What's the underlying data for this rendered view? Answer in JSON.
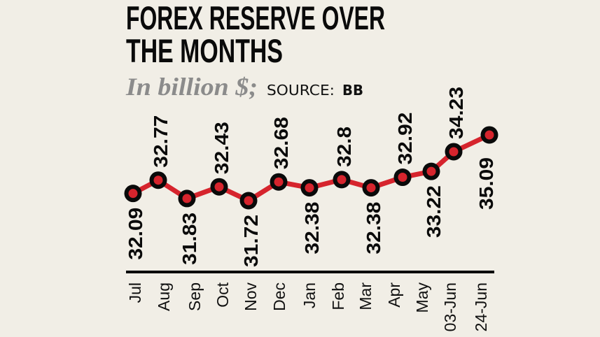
{
  "header": {
    "title_line1": "FOREX RESERVE OVER",
    "title_line2": "THE MONTHS",
    "unit": "In billion $;",
    "source_prefix": "SOURCE:",
    "source_name": "BB"
  },
  "colors": {
    "background": "#f1eee6",
    "line": "#d6242d",
    "marker_ring": "#0a0a0a",
    "marker_fill": "#d6242d",
    "axis": "#0a0a0a",
    "unit_text": "#8b8b8b"
  },
  "chart_data": {
    "type": "line",
    "title": "FOREX RESERVE OVER THE MONTHS",
    "subtitle": "In billion $; SOURCE: BB",
    "xlabel": "",
    "ylabel": "In billion $",
    "categories": [
      "Jul",
      "Aug",
      "Sep",
      "Oct",
      "Nov",
      "Dec",
      "Jan",
      "Feb",
      "Mar",
      "Apr",
      "May",
      "03-Jun",
      "24-Jun"
    ],
    "values": [
      32.09,
      32.77,
      31.83,
      32.43,
      31.72,
      32.68,
      32.38,
      32.8,
      32.38,
      32.92,
      33.22,
      34.23,
      35.09
    ],
    "value_labels": [
      "32.09",
      "32.77",
      "31.83",
      "32.43",
      "31.72",
      "32.68",
      "32.38",
      "32.8",
      "32.38",
      "32.92",
      "33.22",
      "34.23",
      "35.09"
    ],
    "label_position": [
      "below",
      "above",
      "below",
      "above",
      "below",
      "above",
      "below",
      "above",
      "below",
      "above",
      "below",
      "above",
      "below"
    ],
    "grid": false,
    "legend": null,
    "ylim": [
      31.5,
      35.5
    ]
  }
}
